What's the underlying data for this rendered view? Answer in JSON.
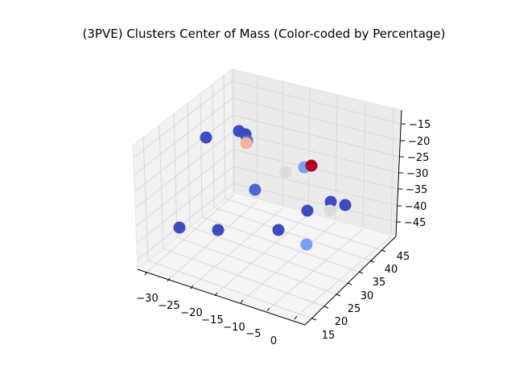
{
  "chart_data": {
    "type": "scatter",
    "projection": "3d",
    "title": "(3PVE) Clusters Center of Mass (Color-coded by Percentage)",
    "xlabel": "",
    "ylabel": "",
    "zlabel": "",
    "x_ticks": [
      "−30",
      "−25",
      "−20",
      "−15",
      "−10",
      "−5",
      "0"
    ],
    "y_ticks": [
      "15",
      "20",
      "25",
      "30",
      "35",
      "40",
      "45"
    ],
    "z_ticks": [
      "−15",
      "−20",
      "−25",
      "−30",
      "−35",
      "−40",
      "−45"
    ],
    "grid": true,
    "legend": "none",
    "colormap": "coolwarm",
    "colors": {
      "dark_blue": "#3b4cc0",
      "mid_blue": "#4a67d5",
      "light_blue": "#7a9ff7",
      "neutral": "#dedcda",
      "light_red": "#f2b39b",
      "dark_red": "#b40426"
    },
    "points": [
      {
        "id": "p1",
        "color": "#3b4cc0"
      },
      {
        "id": "p2",
        "color": "#3b4cc0"
      },
      {
        "id": "p3",
        "color": "#3b4cc0"
      },
      {
        "id": "p4",
        "color": "#4a67d5"
      },
      {
        "id": "p5",
        "color": "#f2b39b"
      },
      {
        "id": "p6",
        "color": "#4a67d5"
      },
      {
        "id": "p7",
        "color": "#dedcda"
      },
      {
        "id": "p8",
        "color": "#7a9ff7"
      },
      {
        "id": "p9",
        "color": "#b40426"
      },
      {
        "id": "p10",
        "color": "#3b4cc0"
      },
      {
        "id": "p11",
        "color": "#3b4cc0"
      },
      {
        "id": "p12",
        "color": "#3b4cc0"
      },
      {
        "id": "p13",
        "color": "#dedcda"
      },
      {
        "id": "p14",
        "color": "#3b4cc0"
      },
      {
        "id": "p15",
        "color": "#3b4cc0"
      },
      {
        "id": "p16",
        "color": "#3b4cc0"
      },
      {
        "id": "p17",
        "color": "#7a9ff7"
      }
    ]
  }
}
